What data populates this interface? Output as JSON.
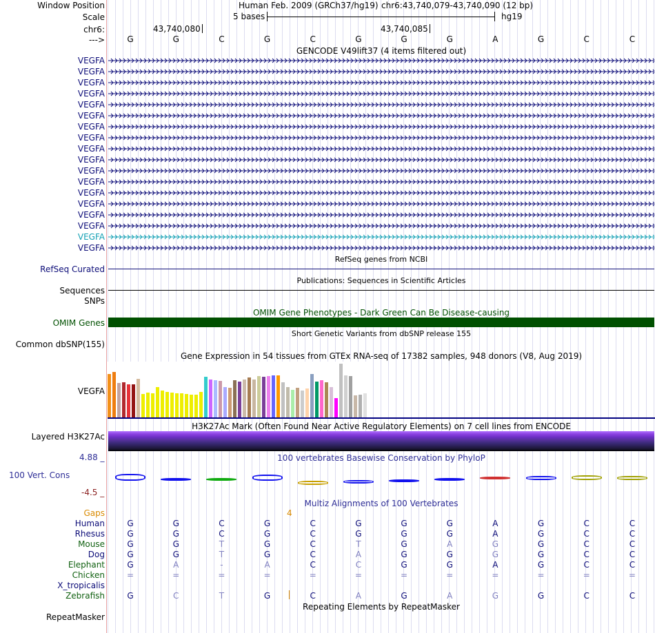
{
  "header": {
    "window_position_label": "Window Position",
    "scale_label": "Scale",
    "chrom_label": "chr6:",
    "strand_label": "--->",
    "assembly": "Human Feb. 2009 (GRCh37/hg19)",
    "position": "chr6:43,740,079-43,740,090 (12 bp)",
    "scale_text": "5 bases",
    "db": "hg19",
    "coord_left": "43,740,080",
    "coord_right": "43,740,085"
  },
  "sequence": [
    "G",
    "G",
    "C",
    "G",
    "C",
    "G",
    "G",
    "G",
    "A",
    "G",
    "C",
    "C"
  ],
  "tracks": {
    "gencode": {
      "title": "GENCODE V49lift37 (4 items filtered out)",
      "items": [
        "VEGFA",
        "VEGFA",
        "VEGFA",
        "VEGFA",
        "VEGFA",
        "VEGFA",
        "VEGFA",
        "VEGFA",
        "VEGFA",
        "VEGFA",
        "VEGFA",
        "VEGFA",
        "VEGFA",
        "VEGFA",
        "VEGFA",
        "VEGFA",
        "VEGFA",
        "VEGFA"
      ],
      "highlight_index": 16,
      "color": "#0c0c78",
      "highlight_color": "#12a0b4"
    },
    "refseq": {
      "label": "RefSeq Curated",
      "title": "RefSeq genes from NCBI"
    },
    "pubs": {
      "label": "Sequences",
      "title": "Publications: Sequences in Scientific Articles"
    },
    "snps": {
      "label": "SNPs"
    },
    "omim": {
      "label": "OMIM Genes",
      "title": "OMIM Gene Phenotypes - Dark Green Can Be Disease-causing",
      "color": "#005000"
    },
    "dbsnp": {
      "label": "Common dbSNP(155)",
      "title": "Short Genetic Variants from dbSNP release 155"
    },
    "gtex": {
      "label": "VEGFA",
      "title": "Gene Expression in 54 tissues from GTEx RNA-seq of 17382 samples, 948 donors (V8, Aug 2019)"
    },
    "h3k27": {
      "label": "Layered H3K27Ac",
      "title": "H3K27Ac Mark (Often Found Near Active Regulatory Elements) on 7 cell lines from ENCODE"
    },
    "cons": {
      "label": "100 Vert. Cons",
      "title": "100 vertebrates Basewise Conservation by PhyloP",
      "max": "4.88 _",
      "min": "-4.5 _"
    },
    "multiz": {
      "title": "Multiz Alignments of 100 Vertebrates",
      "gaps_label": "Gaps",
      "gaps_value": "4",
      "species": [
        {
          "name": "Human",
          "bases": [
            "G",
            "G",
            "C",
            "G",
            "C",
            "G",
            "G",
            "G",
            "A",
            "G",
            "C",
            "C"
          ]
        },
        {
          "name": "Rhesus",
          "bases": [
            "G",
            "G",
            "C",
            "G",
            "C",
            "G",
            "G",
            "G",
            "A",
            "G",
            "C",
            "C"
          ]
        },
        {
          "name": "Mouse",
          "bases": [
            "G",
            "G",
            "T",
            "G",
            "C",
            "T",
            "G",
            "A",
            "G",
            "G",
            "C",
            "C"
          ]
        },
        {
          "name": "Dog",
          "bases": [
            "G",
            "G",
            "T",
            "G",
            "C",
            "A",
            "G",
            "G",
            "G",
            "G",
            "C",
            "C"
          ]
        },
        {
          "name": "Elephant",
          "bases": [
            "G",
            "A",
            "-",
            "A",
            "C",
            "C",
            "G",
            "G",
            "A",
            "G",
            "C",
            "C"
          ]
        },
        {
          "name": "Chicken",
          "bases": [
            "=",
            "=",
            "=",
            "=",
            "=",
            "=",
            "=",
            "=",
            "=",
            "=",
            "=",
            "="
          ]
        },
        {
          "name": "X_tropicalis",
          "bases": [
            "",
            "",
            "",
            "",
            "",
            "",
            "",
            "",
            "",
            "",
            "",
            ""
          ]
        },
        {
          "name": "Zebrafish",
          "bases": [
            "G",
            "C",
            "T",
            "G",
            "C",
            "A",
            "G",
            "A",
            "G",
            "G",
            "C",
            "C"
          ]
        }
      ]
    },
    "repeat": {
      "label": "RepeatMasker",
      "title": "Repeating Elements by RepeatMasker"
    }
  },
  "gtex_chart": {
    "type": "bar",
    "title": "Gene Expression in 54 tissues from GTEx RNA-seq of 17382 samples, 948 donors (V8, Aug 2019)",
    "values": [
      0.78,
      0.82,
      0.62,
      0.63,
      0.6,
      0.6,
      0.69,
      0.43,
      0.45,
      0.44,
      0.55,
      0.49,
      0.46,
      0.45,
      0.44,
      0.44,
      0.43,
      0.42,
      0.42,
      0.46,
      0.73,
      0.68,
      0.67,
      0.66,
      0.55,
      0.54,
      0.67,
      0.65,
      0.68,
      0.72,
      0.68,
      0.74,
      0.73,
      0.74,
      0.76,
      0.76,
      0.64,
      0.55,
      0.5,
      0.54,
      0.49,
      0.53,
      0.78,
      0.65,
      0.67,
      0.64,
      0.55,
      0.35,
      0.96,
      0.76,
      0.74,
      0.4,
      0.41,
      0.44
    ],
    "colors": [
      "#F39019",
      "#EF7D0F",
      "#C2A4A2",
      "#B1292E",
      "#E73138",
      "#941414",
      "#D5BB9F",
      "#EEEE00",
      "#EEEE00",
      "#EEEE00",
      "#EEEE00",
      "#EEEE00",
      "#EEEE00",
      "#EEEE00",
      "#EEEE00",
      "#EEEE00",
      "#EEEE00",
      "#EEEE00",
      "#EEEE00",
      "#EEEE00",
      "#33CCCC",
      "#CC66FF",
      "#AABBFF",
      "#CC99AA",
      "#AAAAFF",
      "#CD9B74",
      "#8B7055",
      "#7B3F99",
      "#CCBBAA",
      "#A67C52",
      "#C8B6A0",
      "#CCCC99",
      "#7B3F99",
      "#EE82EE",
      "#6666FF",
      "#FF9900",
      "#C1C1C1",
      "#C1BBAA",
      "#AAEEAA",
      "#C1A080",
      "#CCCCCC",
      "#FFD3AA",
      "#8A9FC0",
      "#009966",
      "#FF66CC",
      "#AA8855",
      "#D8BFD8",
      "#FF00FF",
      "#C0C0C0",
      "#D0D0D0",
      "#A0A0A0",
      "#C8B8A8",
      "#B0B0B0",
      "#E0E0E0"
    ]
  }
}
